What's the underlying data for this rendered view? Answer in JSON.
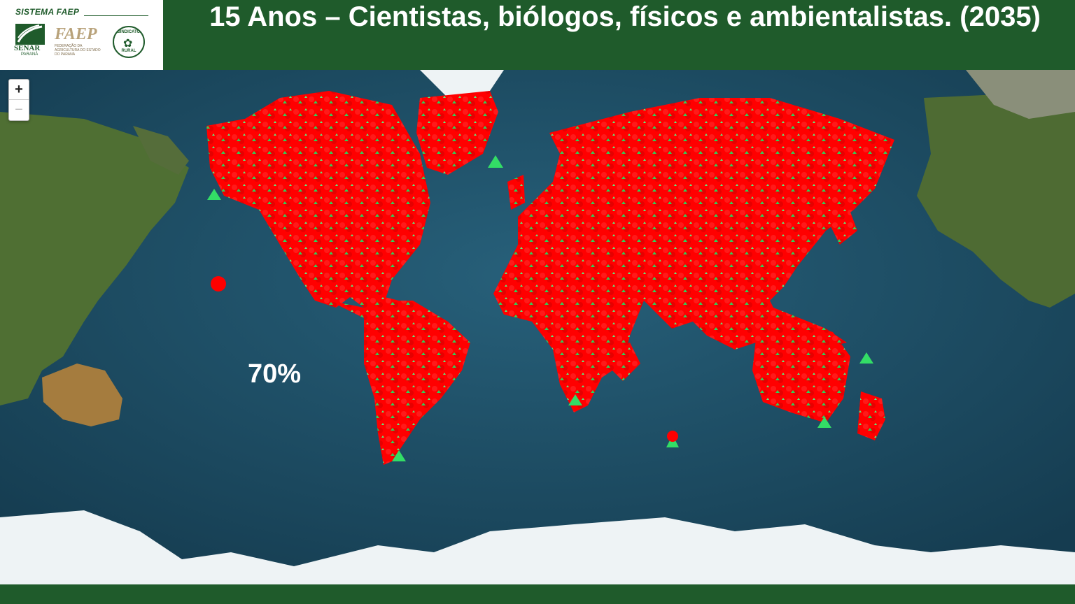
{
  "header": {
    "brand_line": "SISTEMA FAEP",
    "senar_label": "SENAR",
    "senar_sub": "PARANÁ",
    "faep_label": "FAEP",
    "faep_sub": "FEDERAÇÃO DA AGRICULTURA DO ESTADO DO PARANÁ",
    "seal_label_top": "SINDICATO",
    "seal_label_bottom": "RURAL",
    "title": "15 Anos – Cientistas, biólogos, físicos e ambientalistas. (2035)"
  },
  "map": {
    "zoom_in_label": "+",
    "zoom_out_label": "−",
    "percentage_label": "70%",
    "colors": {
      "ocean": "#1e4d63",
      "land": "#5a7a3a",
      "ice": "#eef3f5",
      "marker_red": "#ff0000",
      "marker_green": "#33dd66"
    },
    "marker_icons": [
      "skull-marker-icon",
      "money-bag-marker-icon"
    ]
  },
  "colors": {
    "brand_green": "#1f5b2b",
    "accent_gold": "#b8a27a"
  }
}
